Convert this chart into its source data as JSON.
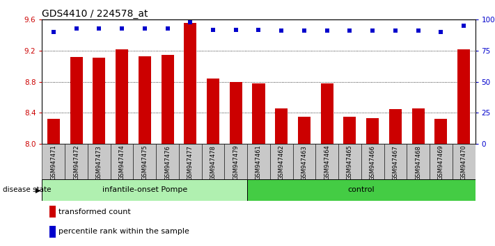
{
  "title": "GDS4410 / 224578_at",
  "samples": [
    "GSM947471",
    "GSM947472",
    "GSM947473",
    "GSM947474",
    "GSM947475",
    "GSM947476",
    "GSM947477",
    "GSM947478",
    "GSM947479",
    "GSM947461",
    "GSM947462",
    "GSM947463",
    "GSM947464",
    "GSM947465",
    "GSM947466",
    "GSM947467",
    "GSM947468",
    "GSM947469",
    "GSM947470"
  ],
  "bar_values": [
    8.32,
    9.12,
    9.11,
    9.22,
    9.13,
    9.15,
    9.56,
    8.84,
    8.8,
    8.78,
    8.46,
    8.35,
    8.78,
    8.35,
    8.33,
    8.45,
    8.46,
    8.32,
    9.22
  ],
  "percentile_values": [
    90,
    93,
    93,
    93,
    93,
    93,
    98,
    92,
    92,
    92,
    91,
    91,
    91,
    91,
    91,
    91,
    91,
    90,
    95
  ],
  "bar_color": "#cc0000",
  "dot_color": "#0000cc",
  "ylim_left": [
    8.0,
    9.6
  ],
  "ylim_right": [
    0,
    100
  ],
  "yticks_left": [
    8.0,
    8.4,
    8.8,
    9.2,
    9.6
  ],
  "yticks_right": [
    0,
    25,
    50,
    75,
    100
  ],
  "ytick_labels_right": [
    "0",
    "25",
    "50",
    "75",
    "100%"
  ],
  "group1_label": "infantile-onset Pompe",
  "group2_label": "control",
  "group1_count": 9,
  "group2_count": 10,
  "disease_state_label": "disease state",
  "legend_bar_label": "transformed count",
  "legend_dot_label": "percentile rank within the sample",
  "background_color": "#ffffff",
  "tick_bg": "#c8c8c8",
  "group1_bg": "#b0f0b0",
  "group2_bg": "#44cc44"
}
